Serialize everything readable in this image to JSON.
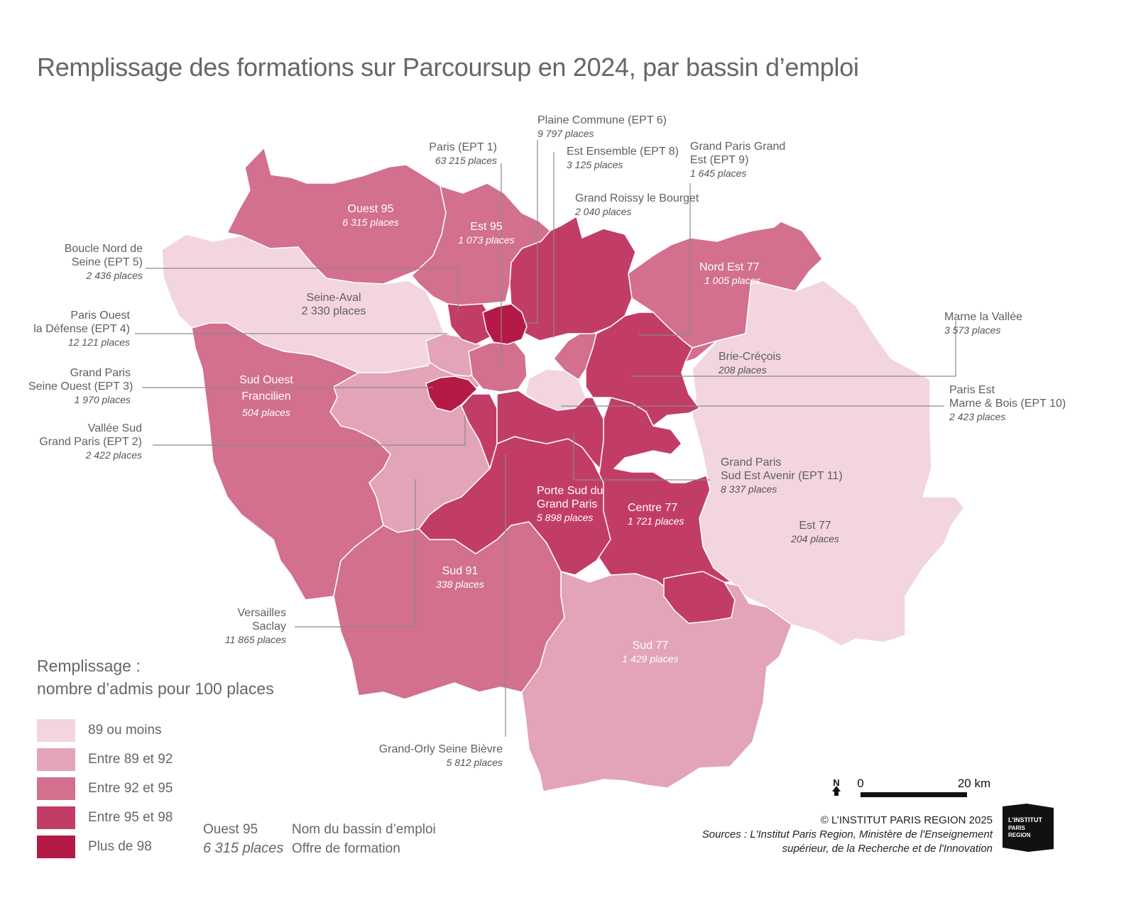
{
  "title": "Remplissage des formations sur Parcoursup en 2024, par bassin d’emploi",
  "legend": {
    "title_line1": "Remplissage :",
    "title_line2": "nombre d’admis pour 100 places",
    "classes": [
      {
        "label": "89 ou moins",
        "color": "#f3d5df"
      },
      {
        "label": "Entre 89 et 92",
        "color": "#e3a4b7"
      },
      {
        "label": "Entre 92 et 95",
        "color": "#d2708e"
      },
      {
        "label": "Entre 95 et 98",
        "color": "#c23d66"
      },
      {
        "label": "Plus de 98",
        "color": "#b51a46"
      }
    ],
    "key_name_example": "Ouest 95",
    "key_places_example": "6 315 places",
    "key_name_desc": "Nom du bassin d’emploi",
    "key_places_desc": "Offre de formation"
  },
  "regions": {
    "ouest95": {
      "name": "Ouest 95",
      "places": "6 315 places"
    },
    "est95": {
      "name": "Est 95",
      "places": "1 073 places"
    },
    "seine_aval": {
      "name": "Seine-Aval",
      "places": "2 330 places"
    },
    "sud_ouest": {
      "name1": "Sud Ouest",
      "name2": "Francilien",
      "places": "504 places"
    },
    "nord_est77": {
      "name": "Nord Est 77",
      "places": "1 005 places"
    },
    "brie": {
      "name": "Brie-Créçois",
      "places": "208 places"
    },
    "porte_sud": {
      "name1": "Porte Sud du",
      "name2": "Grand Paris",
      "places": "5 898 places"
    },
    "centre77": {
      "name": "Centre 77",
      "places": "1 721 places"
    },
    "est77": {
      "name": "Est 77",
      "places": "204 places"
    },
    "sud91": {
      "name": "Sud 91",
      "places": "338 places"
    },
    "sud77": {
      "name": "Sud 77",
      "places": "1 429 places"
    },
    "plaine_commune": {
      "name": "Plaine Commune (EPT 6)",
      "places": "9 797 places"
    },
    "paris": {
      "name": "Paris (EPT 1)",
      "places": "63 215 places"
    },
    "est_ensemble": {
      "name": "Est Ensemble (EPT 8)",
      "places": "3 125 places"
    },
    "gpge": {
      "name1": "Grand Paris Grand",
      "name2": "Est (EPT 9)",
      "places": "1 645 places"
    },
    "roissy": {
      "name": "Grand Roissy le Bourget",
      "places": "2 040 places"
    },
    "boucle_nord": {
      "name1": "Boucle Nord de",
      "name2": "Seine (EPT 5)",
      "places": "2 436 places"
    },
    "paris_ouest": {
      "name1": "Paris Ouest",
      "name2": "la Défense (EPT 4)",
      "places": "12 121 places"
    },
    "gpso": {
      "name1": "Grand Paris",
      "name2": "Seine Ouest (EPT 3)",
      "places": "1 970 places"
    },
    "vallee_sud": {
      "name1": "Vallée Sud",
      "name2": "Grand Paris (EPT 2)",
      "places": "2 422 places"
    },
    "marne_vallee": {
      "name": "Marne la Vallée",
      "places": "3 573 places"
    },
    "pemb": {
      "name1": "Paris Est",
      "name2": "Marne & Bois (EPT 10)",
      "places": "2 423 places"
    },
    "gpsea": {
      "name1": "Grand Paris",
      "name2": "Sud Est Avenir (EPT 11)",
      "places": "8 337 places"
    },
    "versailles": {
      "name1": "Versailles",
      "name2": "Saclay",
      "places": "11 865 places"
    },
    "gosb": {
      "name": "Grand-Orly Seine Bièvre",
      "places": "5 812 places"
    }
  },
  "scale": {
    "zero": "0",
    "max": "20 km",
    "north": "N"
  },
  "credit": {
    "copyright": "© L’INSTITUT PARIS REGION 2025",
    "source1": "Sources : L'Institut Paris Region, Ministère de l'Enseignement",
    "source2": "supérieur, de la Recherche et de l'Innovation"
  },
  "logo": {
    "line1": "L’INSTITUT",
    "line2": "PARIS",
    "line3": "REGION"
  }
}
